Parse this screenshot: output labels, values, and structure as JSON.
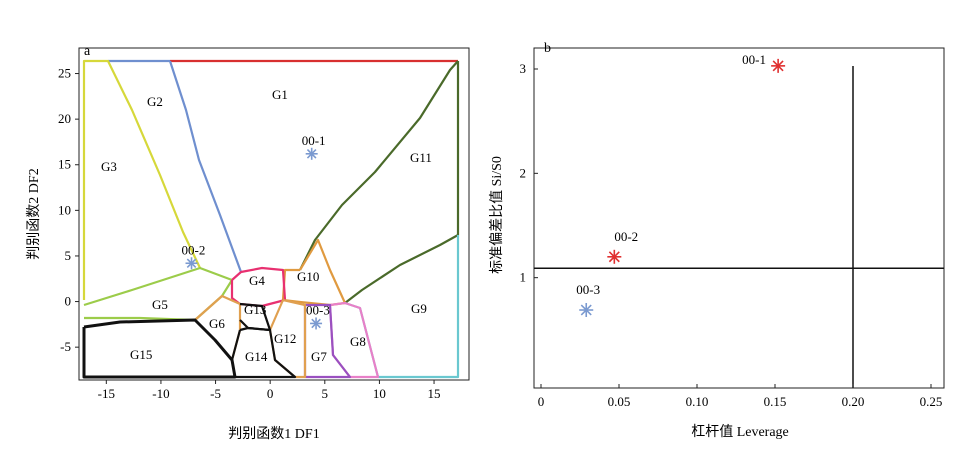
{
  "chart_data": [
    {
      "type": "territorial-map",
      "panel_label": "a",
      "title": "",
      "xlabel": "判别函数1 DF1",
      "ylabel": "判别函数2 DF2",
      "xlim": [
        -17.5,
        18.2
      ],
      "ylim": [
        -8.6,
        27.8
      ],
      "xticks": [
        -15,
        -10,
        -5,
        0,
        5,
        10,
        15
      ],
      "yticks": [
        -5,
        0,
        5,
        10,
        15,
        20,
        25
      ],
      "regions": [
        "G1",
        "G2",
        "G3",
        "G4",
        "G5",
        "G6",
        "G7",
        "G8",
        "G9",
        "G10",
        "G11",
        "G12",
        "G13",
        "G14",
        "G15"
      ],
      "points": [
        {
          "label": "00-1",
          "x": 3.8,
          "y": 16.2,
          "color": "#7b9ad0"
        },
        {
          "label": "00-2",
          "x": -7.2,
          "y": 4.2,
          "color": "#7b9ad0"
        },
        {
          "label": "00-3",
          "x": 4.2,
          "y": -2.4,
          "color": "#7b9ad0"
        }
      ],
      "grid": false,
      "legend": "none"
    },
    {
      "type": "scatter",
      "panel_label": "b",
      "title": "",
      "xlabel": "杠杆值 Leverage",
      "ylabel": "标准偏差比值 Si/S0",
      "xlim": [
        0,
        0.265
      ],
      "ylim": [
        0,
        3.2
      ],
      "xticks": [
        "0",
        "0.05",
        "0.10",
        "0.15",
        "0.20",
        "0.25"
      ],
      "yticks": [
        "1",
        "2",
        "3"
      ],
      "reference_lines": {
        "x": 0.2,
        "y": 1.09
      },
      "points": [
        {
          "label": "00-1",
          "x": 0.152,
          "y": 3.03,
          "color": "#e03030"
        },
        {
          "label": "00-2",
          "x": 0.047,
          "y": 1.2,
          "color": "#e03030"
        },
        {
          "label": "00-3",
          "x": 0.029,
          "y": 0.69,
          "color": "#7b9ad0"
        }
      ],
      "grid": false,
      "legend": "none"
    }
  ]
}
